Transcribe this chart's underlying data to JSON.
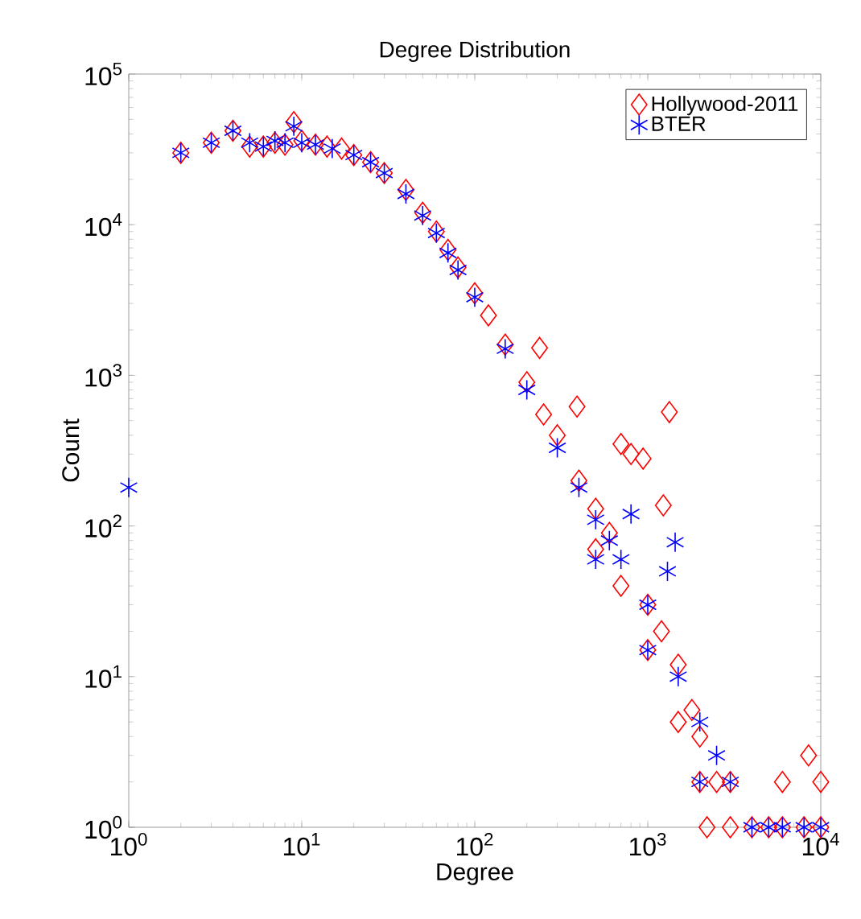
{
  "chart_data": {
    "type": "scatter",
    "title": "Degree Distribution",
    "xlabel": "Degree",
    "ylabel": "Count",
    "log": "xy",
    "grid": false,
    "legend": "top right",
    "xlim": [
      1,
      10000
    ],
    "ylim": [
      1,
      100000
    ],
    "xticks": [
      {
        "value": 1,
        "label": "10$^{0}$"
      },
      {
        "value": 10,
        "label": "10$^{1}$"
      },
      {
        "value": 100,
        "label": "10$^{2}$"
      },
      {
        "value": 1000,
        "label": "10$^{3}$"
      },
      {
        "value": 10000,
        "label": "10$^{4}$"
      }
    ],
    "yticks": [
      {
        "value": 1,
        "label": "10$^{0}$"
      },
      {
        "value": 10,
        "label": "10$^{1}$"
      },
      {
        "value": 100,
        "label": "10$^{2}$"
      },
      {
        "value": 1000,
        "label": "10$^{3}$"
      },
      {
        "value": 10000,
        "label": "10$^{4}$"
      },
      {
        "value": 100000,
        "label": "10$^{5}$"
      }
    ],
    "series": [
      {
        "name": "Hollywood-2011",
        "color": "#ff0000",
        "marker": "diamond",
        "x": [
          2,
          3,
          4,
          5,
          6,
          7,
          8,
          9,
          10,
          12,
          14,
          17,
          20,
          25,
          30,
          40,
          50,
          60,
          70,
          80,
          100,
          120,
          150,
          200,
          237,
          250,
          300,
          390,
          400,
          500,
          500,
          600,
          700,
          700,
          800,
          940,
          1000,
          1000,
          1200,
          1230,
          1333,
          1500,
          1500,
          1800,
          2000,
          2000,
          2200,
          2500,
          3000,
          3000,
          4000,
          5000,
          6000,
          6000,
          8000,
          8500,
          10000,
          10000
        ],
        "values": [
          30000,
          35000,
          42000,
          33000,
          33000,
          35000,
          34000,
          48000,
          36000,
          34000,
          33000,
          32000,
          29000,
          26000,
          22000,
          17000,
          12000,
          9000,
          6800,
          5200,
          3500,
          2500,
          1600,
          900,
          1520,
          550,
          400,
          620,
          200,
          130,
          70,
          90,
          350,
          40,
          300,
          280,
          30,
          15,
          20,
          137,
          570,
          12,
          5,
          6,
          4,
          2,
          1,
          2,
          2,
          1,
          1,
          1,
          1,
          2,
          1,
          3,
          1,
          2
        ]
      },
      {
        "name": "BTER",
        "color": "#0000ff",
        "marker": "cross",
        "x": [
          1,
          2,
          3,
          4,
          5,
          6,
          7,
          8,
          9,
          10,
          12,
          15,
          20,
          25,
          30,
          40,
          50,
          60,
          70,
          80,
          100,
          150,
          200,
          300,
          400,
          500,
          500,
          600,
          700,
          800,
          1000,
          1000,
          1300,
          1440,
          1500,
          2000,
          2000,
          2500,
          3000,
          4000,
          5000,
          6000,
          8000,
          10000
        ],
        "values": [
          180,
          30000,
          35000,
          42000,
          35000,
          33000,
          36000,
          35000,
          45000,
          35000,
          34000,
          32000,
          29000,
          26000,
          22000,
          16000,
          11500,
          8800,
          6500,
          5000,
          3300,
          1500,
          800,
          330,
          180,
          110,
          60,
          80,
          60,
          120,
          30,
          15,
          50,
          78,
          10,
          5,
          2,
          3,
          2,
          1,
          1,
          1,
          1,
          1
        ]
      }
    ]
  }
}
